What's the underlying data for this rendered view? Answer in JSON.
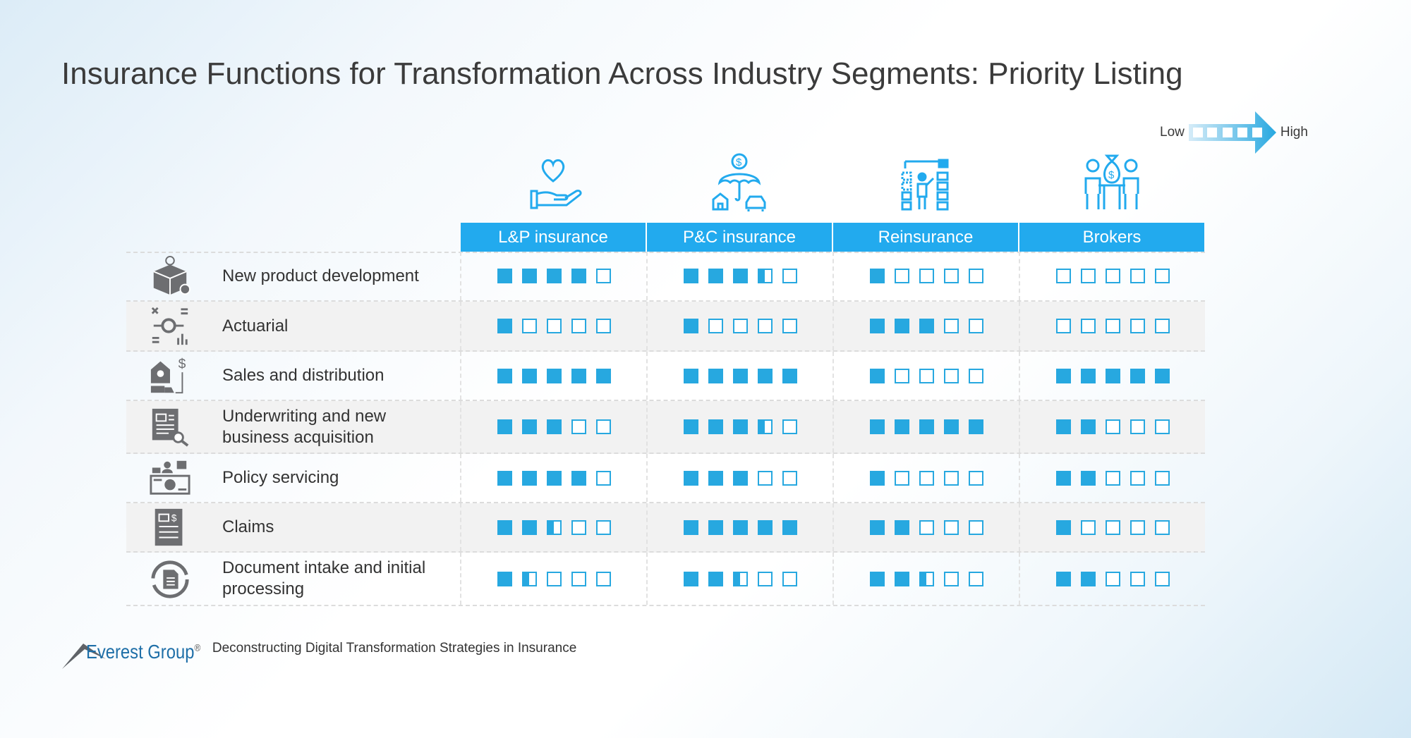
{
  "title": "Insurance Functions for Transformation Across Industry Segments: Priority Listing",
  "legend": {
    "low": "Low",
    "high": "High"
  },
  "colors": {
    "accent": "#22aaee",
    "filled": "#27a8e0",
    "icon_gray": "#6d6e71"
  },
  "columns": [
    {
      "label": "L&P insurance",
      "icon": "heart-in-hand-icon"
    },
    {
      "label": "P&C insurance",
      "icon": "umbrella-house-car-icon"
    },
    {
      "label": "Reinsurance",
      "icon": "person-with-blocks-icon"
    },
    {
      "label": "Brokers",
      "icon": "people-with-money-bag-icon"
    }
  ],
  "rows": [
    {
      "label": "New product development",
      "icon": "box-lightbulb-gear-icon",
      "ratings": [
        4,
        3.5,
        1,
        0
      ]
    },
    {
      "label": "Actuarial",
      "icon": "gear-calculations-icon",
      "ratings": [
        1,
        1,
        3,
        0
      ]
    },
    {
      "label": "Sales and distribution",
      "icon": "store-delivery-icon",
      "ratings": [
        5,
        5,
        1,
        5
      ]
    },
    {
      "label": "Underwriting and new business acquisition",
      "icon": "document-search-icon",
      "ratings": [
        3,
        3.5,
        5,
        2
      ]
    },
    {
      "label": "Policy servicing",
      "icon": "payment-people-icon",
      "ratings": [
        4,
        3,
        1,
        2
      ]
    },
    {
      "label": "Claims",
      "icon": "claim-form-icon",
      "ratings": [
        2.5,
        5,
        2,
        1
      ]
    },
    {
      "label": "Document intake and initial processing",
      "icon": "document-cycle-icon",
      "ratings": [
        1.5,
        2.5,
        2.5,
        2
      ]
    }
  ],
  "scale_max": 5,
  "footer": {
    "logo": "Everest Group",
    "logo_mark": "®",
    "subtitle": "Deconstructing Digital Transformation Strategies in Insurance"
  }
}
